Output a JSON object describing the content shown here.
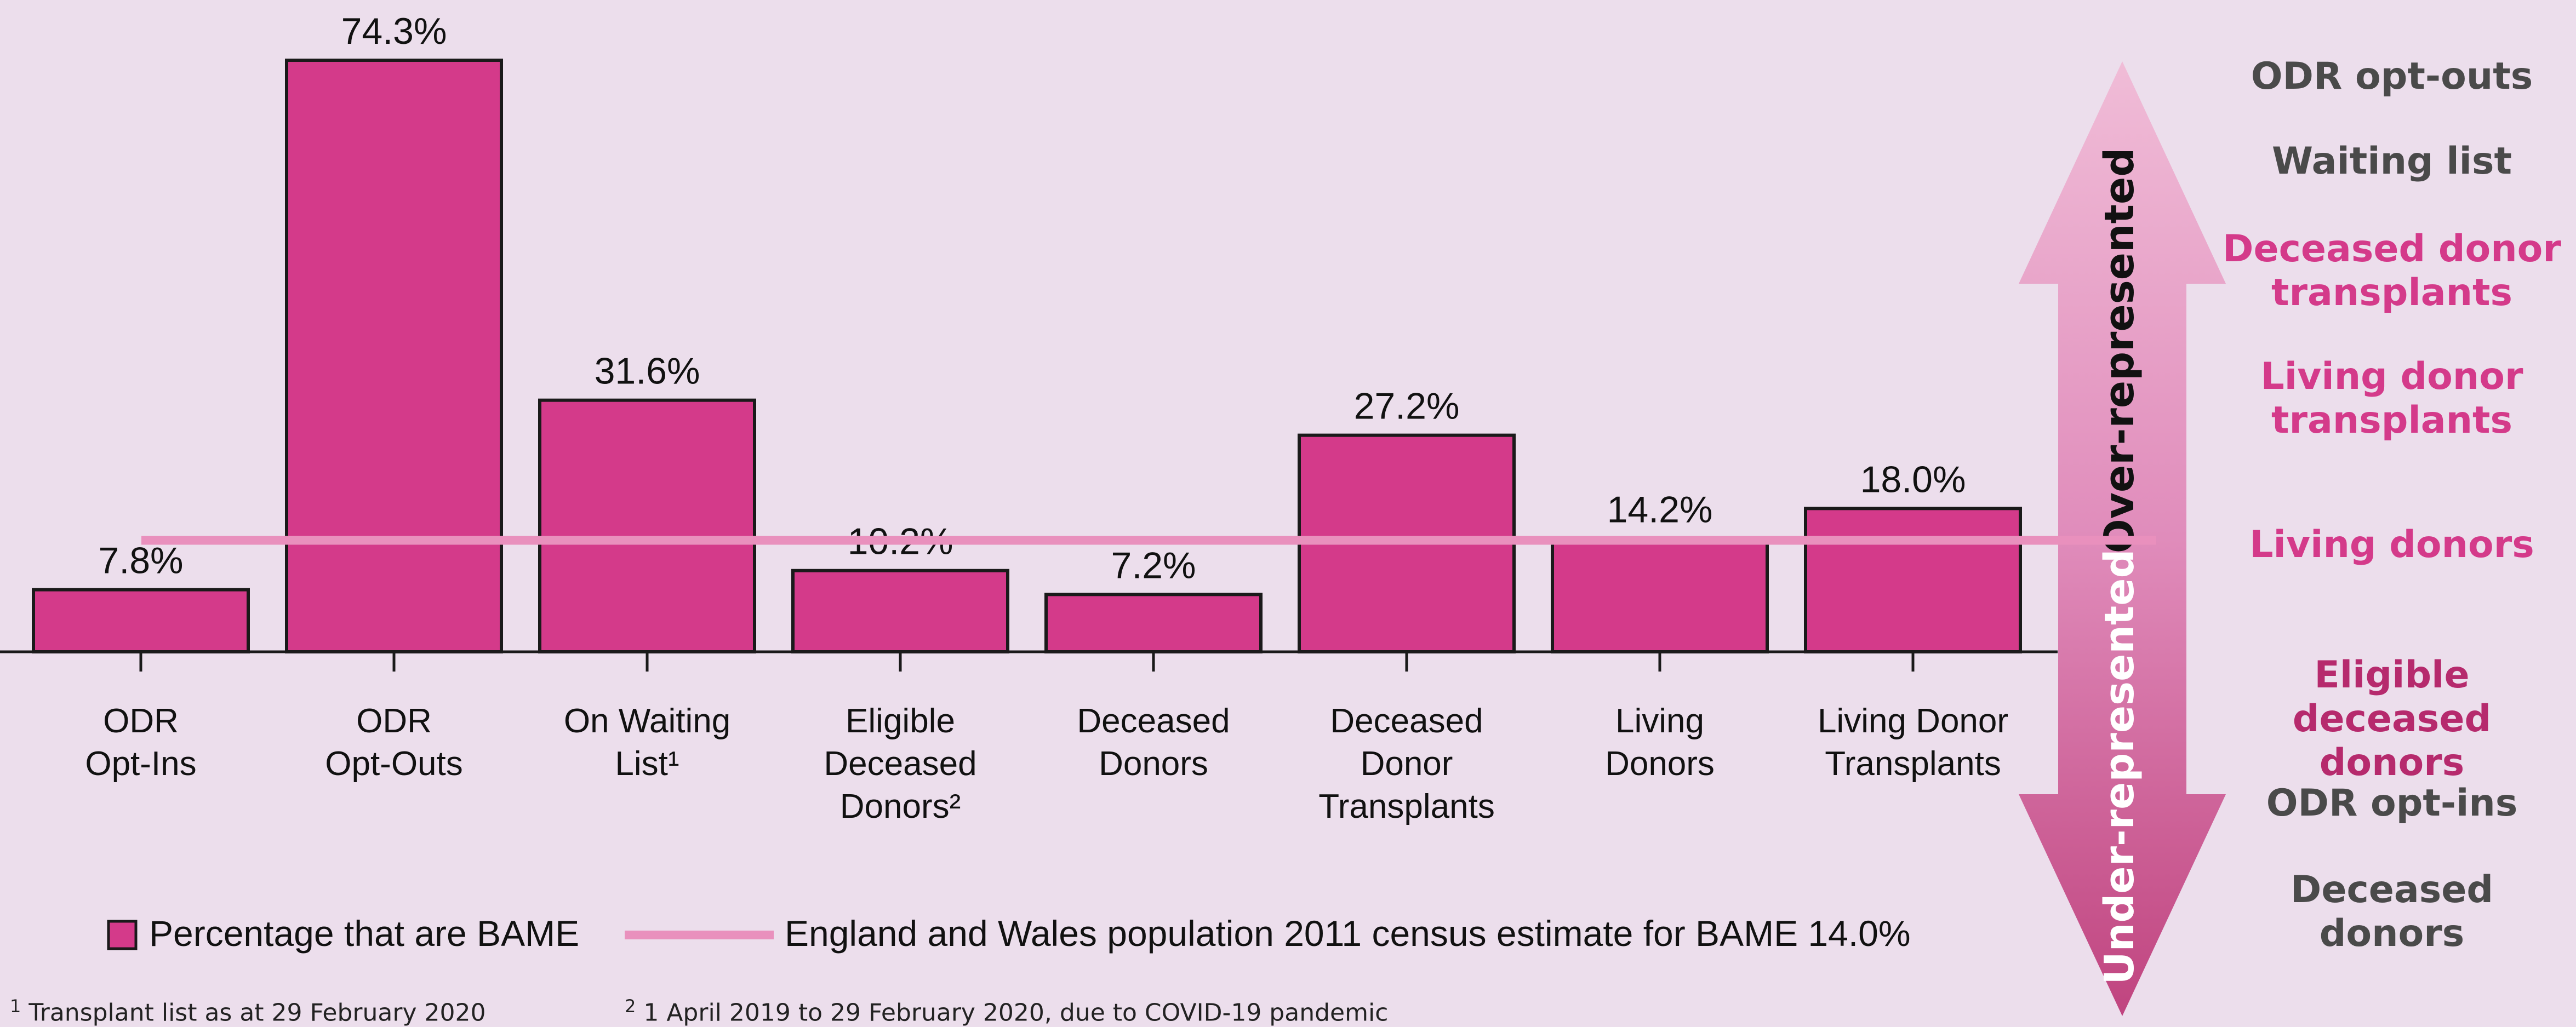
{
  "chart_data": {
    "type": "bar",
    "categories": [
      [
        "ODR",
        "Opt-Ins"
      ],
      [
        "ODR",
        "Opt-Outs"
      ],
      [
        "On Waiting",
        "List¹"
      ],
      [
        "Eligible",
        "Deceased",
        "Donors²"
      ],
      [
        "Deceased",
        "Donors"
      ],
      [
        "Deceased",
        "Donor",
        "Transplants"
      ],
      [
        "Living",
        "Donors"
      ],
      [
        "Living Donor",
        "Transplants"
      ]
    ],
    "values": [
      7.8,
      74.3,
      31.6,
      10.2,
      7.2,
      27.2,
      14.2,
      18.0
    ],
    "value_labels": [
      "7.8%",
      "74.3%",
      "31.6%",
      "10.2%",
      "7.2%",
      "27.2%",
      "14.2%",
      "18.0%"
    ],
    "reference_line": {
      "value": 14.0
    },
    "legend": {
      "bar_label": "Percentage that are BAME",
      "line_label": "England and Wales population 2011 census estimate for BAME 14.0%",
      "placement": "bottom"
    },
    "colors": {
      "bar": "#d43a8a",
      "line": "#e990bd",
      "background": "#ecdeec"
    },
    "ylim": [
      0,
      82
    ],
    "grid": false
  },
  "arrow": {
    "up_label": "Over-represented",
    "down_label": "Under-represented"
  },
  "ranking": [
    {
      "lines": [
        "ODR opt-outs"
      ],
      "color": "#4a4a4a"
    },
    {
      "lines": [
        "Waiting list"
      ],
      "color": "#4a4a4a"
    },
    {
      "lines": [
        "Deceased donor",
        "transplants"
      ],
      "color": "#d43a8a"
    },
    {
      "lines": [
        "Living donor",
        "transplants"
      ],
      "color": "#d43a8a"
    },
    {
      "lines": [
        "Living donors"
      ],
      "color": "#d43a8a"
    },
    {
      "lines": [
        "Eligible deceased",
        "donors"
      ],
      "color": "#b62a6d"
    },
    {
      "lines": [
        "ODR opt-ins"
      ],
      "color": "#4a4a4a"
    },
    {
      "lines": [
        "Deceased",
        "donors"
      ],
      "color": "#4a4a4a"
    }
  ],
  "footnotes": [
    {
      "marker": "1",
      "text": " Transplant list as at 29 February 2020"
    },
    {
      "marker": "2",
      "text": " 1 April 2019 to 29 February 2020, due to COVID-19 pandemic"
    }
  ]
}
